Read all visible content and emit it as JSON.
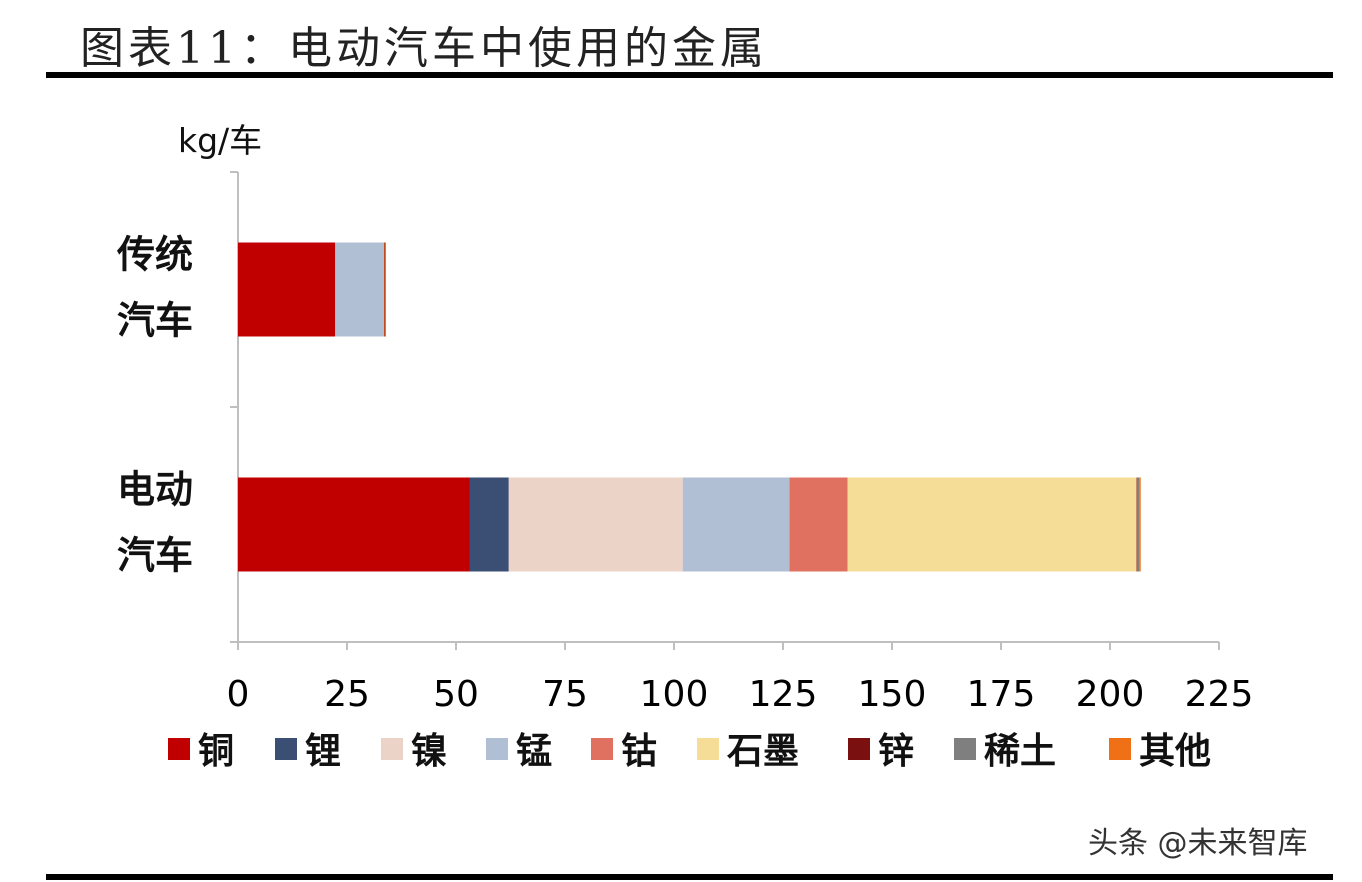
{
  "title": "图表11：电动汽车中使用的金属",
  "watermark": "头条 @未来智库",
  "colors": {
    "铜": "#c00000",
    "锂": "#3b4f75",
    "镍": "#ecd3c7",
    "锰": "#b0bfd4",
    "钴": "#e07160",
    "石墨": "#f5dc97",
    "锌": "#7a1010",
    "稀土": "#7f7f7f",
    "其他": "#f07016"
  },
  "chart_data": {
    "type": "bar",
    "orientation": "horizontal",
    "stacked": true,
    "unit_label": "kg/车",
    "categories": [
      "传统\n汽车",
      "电动\n汽车"
    ],
    "series": [
      {
        "name": "铜",
        "values": [
          22.3,
          53.2
        ]
      },
      {
        "name": "锂",
        "values": [
          0,
          8.9
        ]
      },
      {
        "name": "镍",
        "values": [
          0,
          39.9
        ]
      },
      {
        "name": "锰",
        "values": [
          11.2,
          24.5
        ]
      },
      {
        "name": "钴",
        "values": [
          0,
          13.3
        ]
      },
      {
        "name": "石墨",
        "values": [
          0,
          66.3
        ]
      },
      {
        "name": "锌",
        "values": [
          0.1,
          0.1
        ]
      },
      {
        "name": "稀土",
        "values": [
          0,
          0.5
        ]
      },
      {
        "name": "其他",
        "values": [
          0.3,
          0.3
        ]
      }
    ],
    "xlim": [
      0,
      225
    ],
    "xticks": [
      0,
      25,
      50,
      75,
      100,
      125,
      150,
      175,
      200,
      225
    ],
    "grid": false,
    "legend_position": "bottom"
  }
}
